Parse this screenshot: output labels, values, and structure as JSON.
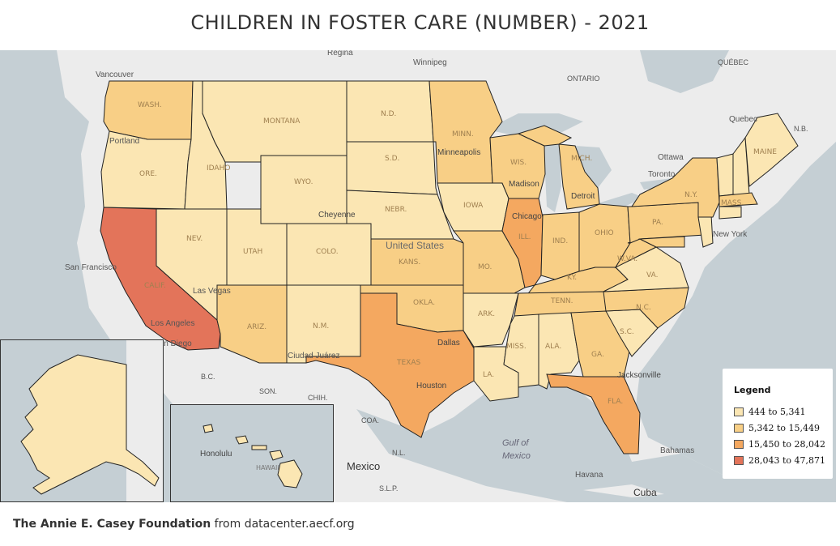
{
  "title": "CHILDREN IN FOSTER CARE (NUMBER) - 2021",
  "colors": {
    "bin1": "#fbe6b3",
    "bin2": "#f8cf86",
    "bin3": "#f4a860",
    "bin4": "#e3745a",
    "water": "#c5cfd4",
    "land": "#ececec"
  },
  "legend": {
    "title": "Legend",
    "items": [
      {
        "label": "444 to 5,341",
        "color": "#fbe6b3"
      },
      {
        "label": "5,342 to 15,449",
        "color": "#f8cf86"
      },
      {
        "label": "15,450 to 28,042",
        "color": "#f4a860"
      },
      {
        "label": "28,043 to 47,871",
        "color": "#e3745a"
      }
    ]
  },
  "state_labels": [
    "WASH.",
    "ORE.",
    "CALIF.",
    "IDAHO",
    "NEV.",
    "MONTANA",
    "WYO.",
    "UTAH",
    "ARIZ.",
    "COLO.",
    "N.M.",
    "N.D.",
    "S.D.",
    "NEBR.",
    "KANS.",
    "OKLA.",
    "TEXAS",
    "MINN.",
    "IOWA",
    "MO.",
    "ARK.",
    "LA.",
    "WIS.",
    "ILL.",
    "MISS.",
    "MICH.",
    "IND.",
    "KY.",
    "TENN.",
    "ALA.",
    "OHIO",
    "GA.",
    "FLA.",
    "S.C.",
    "N.C.",
    "VA.",
    "W.VA.",
    "PA.",
    "N.Y.",
    "MAINE",
    "MASS."
  ],
  "place_labels": [
    "Regina",
    "Winnipeg",
    "Vancouver",
    "Portland",
    "ONTARIO",
    "QUÉBEC",
    "Quebec",
    "N.B.",
    "Ottawa",
    "Toronto",
    "Minneapolis",
    "Madison",
    "Detroit",
    "Chicago",
    "Cheyenne",
    "United States",
    "San Francisco",
    "Las Vegas",
    "Los Angeles",
    "San Diego",
    "Ciudad Juárez",
    "Dallas",
    "Houston",
    "Jacksonville",
    "New York",
    "SON.",
    "CHIH.",
    "COA.",
    "N.L.",
    "S.L.P.",
    "Mexico",
    "Gulf of",
    "Mexico",
    "Bahamas",
    "Havana",
    "Cuba",
    "B.C.",
    "Honolulu",
    "HAWAII"
  ],
  "footer": {
    "org": "The Annie E. Casey Foundation",
    "source": " from datacenter.aecf.org"
  }
}
